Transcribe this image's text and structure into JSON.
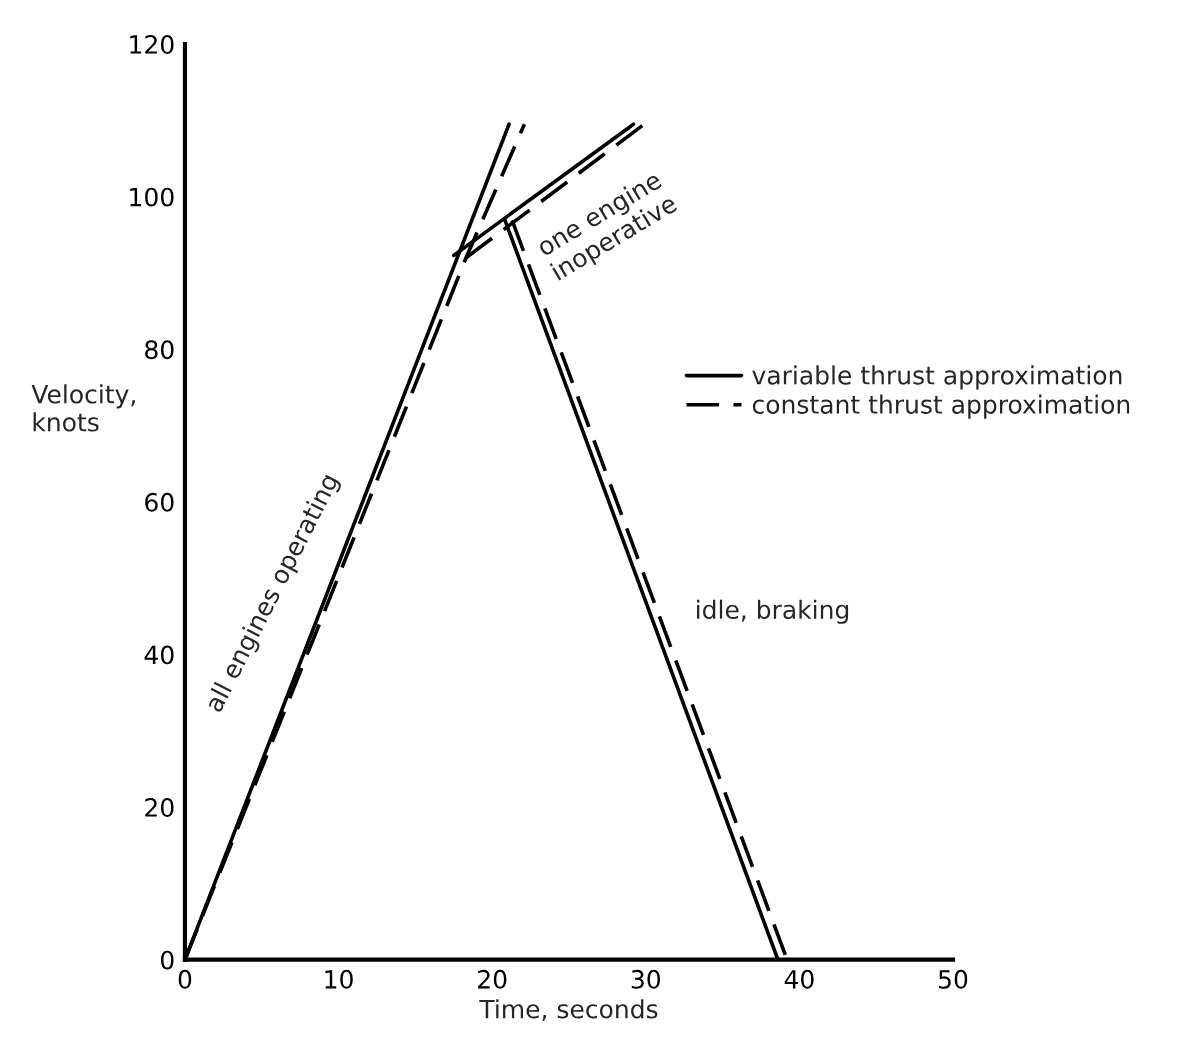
{
  "chart_data": {
    "type": "line",
    "xlabel": "Time, seconds",
    "ylabel": "Velocity,\nknots",
    "xlim": [
      0,
      50
    ],
    "xticks": [
      0,
      10,
      20,
      30,
      40,
      50
    ],
    "ylim": [
      0,
      120
    ],
    "yticks": [
      0,
      20,
      40,
      60,
      80,
      100,
      120
    ],
    "grid": false,
    "legend": "right",
    "marker": "none",
    "series": [
      {
        "name": "variable thrust approximation",
        "color": "#000000",
        "line_style": "solid",
        "x": [
          0,
          21.1
        ],
        "values": [
          0,
          109.5
        ]
      },
      {
        "color": "#000000",
        "line_style": "solid",
        "x": [
          17.5,
          29.2
        ],
        "values": [
          92.3,
          109.5
        ]
      },
      {
        "color": "#000000",
        "line_style": "solid",
        "x": [
          20.8,
          38.6
        ],
        "values": [
          97.1,
          0
        ]
      },
      {
        "name": "constant thrust approximation",
        "color": "#000000",
        "line_style": "dashed",
        "x": [
          0,
          18.3,
          22.1
        ],
        "values": [
          0,
          92,
          109.5
        ]
      },
      {
        "color": "#000000",
        "line_style": "dashed",
        "x": [
          18.3,
          29.9
        ],
        "values": [
          92,
          109.5
        ]
      },
      {
        "color": "#000000",
        "line_style": "dashed",
        "x": [
          21.3,
          39.2
        ],
        "values": [
          96.9,
          0
        ]
      }
    ],
    "annotations": [
      "all engines operating",
      "one engine\ninoperative",
      "idle, braking"
    ]
  }
}
